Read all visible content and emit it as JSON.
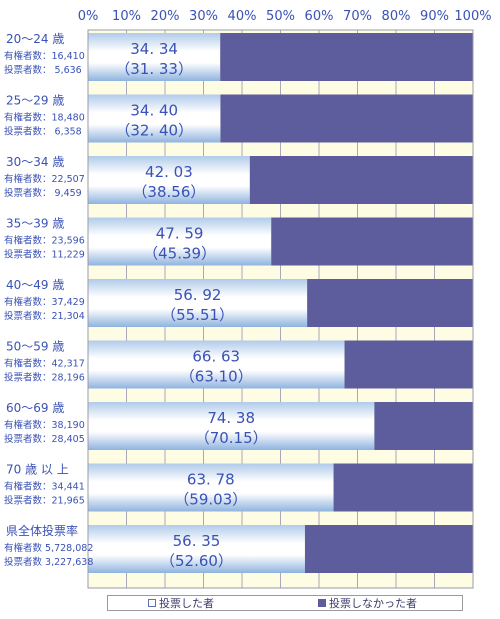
{
  "chart_data": {
    "type": "bar",
    "orientation": "horizontal",
    "stacked": true,
    "xlim": [
      0,
      100
    ],
    "x_ticks": [
      "0%",
      "10%",
      "20%",
      "30%",
      "40%",
      "50%",
      "60%",
      "70%",
      "80%",
      "90%",
      "100%"
    ],
    "legend": [
      {
        "name": "投票した者",
        "color": "#ffffff"
      },
      {
        "name": "投票しなかった者",
        "color": "#5d5c9c"
      }
    ],
    "legend_position": "bottom",
    "categories": [
      {
        "label": "20～24 歳",
        "stat1": "有権者数：16,410",
        "stat2": "投票者数：  5,636",
        "value": 34.34,
        "value_label": "34. 34",
        "prev_label": "（31. 33）"
      },
      {
        "label": "25～29 歳",
        "stat1": "有権者数：18,480",
        "stat2": "投票者数：  6,358",
        "value": 34.4,
        "value_label": "34. 40",
        "prev_label": "（32. 40）"
      },
      {
        "label": "30～34 歳",
        "stat1": "有権者数：22,507",
        "stat2": "投票者数：  9,459",
        "value": 42.03,
        "value_label": "42. 03",
        "prev_label": "（38.56）"
      },
      {
        "label": "35～39 歳",
        "stat1": "有権者数：23,596",
        "stat2": "投票者数：11,229",
        "value": 47.59,
        "value_label": "47. 59",
        "prev_label": "（45.39）"
      },
      {
        "label": "40～49 歳",
        "stat1": "有権者数：37,429",
        "stat2": "投票者数：21,304",
        "value": 56.92,
        "value_label": "56. 92",
        "prev_label": "（55.51）"
      },
      {
        "label": "50～59 歳",
        "stat1": "有権者数：42,317",
        "stat2": "投票者数：28,196",
        "value": 66.63,
        "value_label": "66. 63",
        "prev_label": "（63.10）"
      },
      {
        "label": "60～69 歳",
        "stat1": "有権者数：38,190",
        "stat2": "投票者数：28,405",
        "value": 74.38,
        "value_label": "74. 38",
        "prev_label": "（70.15）"
      },
      {
        "label": "70 歳 以 上",
        "stat1": "有権者数：34,441",
        "stat2": "投票者数：21,965",
        "value": 63.78,
        "value_label": "63. 78",
        "prev_label": "（59.03）"
      },
      {
        "label": "県全体投票率",
        "stat1": "有権者数 5,728,082",
        "stat2": "投票者数 3,227,638",
        "value": 56.35,
        "value_label": "56. 35",
        "prev_label": "（52.60）"
      }
    ]
  },
  "colors": {
    "voted_gradient": [
      "#ffffff",
      "#cfe0f4",
      "#8fb3df"
    ],
    "not_voted": "#5d5c9c",
    "separator_fill": "#fefde4",
    "gridline": "#a8a8b8",
    "text": "#3a52b5"
  }
}
